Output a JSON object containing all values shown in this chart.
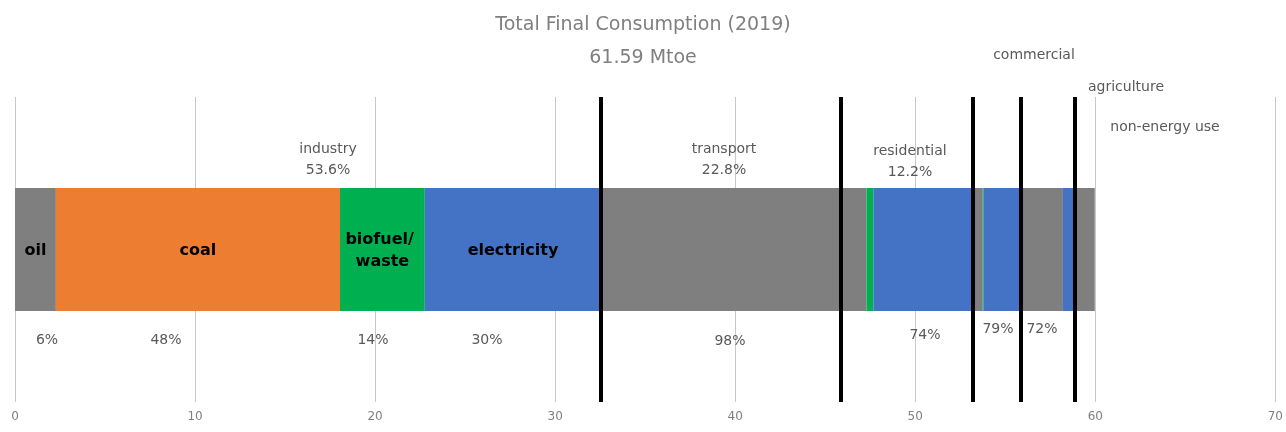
{
  "chart_data": {
    "type": "bar",
    "orientation": "horizontal",
    "stacked": true,
    "title": "Total Final Consumption (2019)",
    "subtitle": "61.59 Mtoe",
    "categories": [
      null
    ],
    "series": [
      {
        "name": "oil",
        "color": "#7f7f7f",
        "values": [
          2.27
        ]
      },
      {
        "name": "coal",
        "color": "#ed7d31",
        "values": [
          15.78
        ]
      },
      {
        "name": "biofuel/ waste",
        "color": "#00b050",
        "values": [
          4.71
        ]
      },
      {
        "name": "electricity",
        "color": "#4472c4",
        "values": [
          9.8
        ]
      },
      {
        "color": "#7f7f7f",
        "values": [
          13.29
        ]
      },
      {
        "color": "#7f7f7f",
        "values": [
          1.44
        ]
      },
      {
        "color": "#00b050",
        "values": [
          0.38
        ]
      },
      {
        "color": "#4472c4",
        "values": [
          5.52
        ]
      },
      {
        "color": "#7f7f7f",
        "values": [
          0.54
        ]
      },
      {
        "color": "#00b050",
        "values": [
          0.05
        ]
      },
      {
        "color": "#4472c4",
        "values": [
          2.09
        ]
      },
      {
        "color": "#7f7f7f",
        "values": [
          2.33
        ]
      },
      {
        "color": "#4472c4",
        "values": [
          0.66
        ]
      },
      {
        "color": "#7f7f7f",
        "values": [
          1.11
        ]
      }
    ],
    "xlim": [
      0,
      70
    ],
    "xticks": [
      0,
      10,
      20,
      30,
      40,
      50,
      60,
      70
    ],
    "grid": "x",
    "legend": false,
    "ref_lines": [
      {
        "axis": "x",
        "value": 32.56,
        "color": "#000000"
      },
      {
        "axis": "x",
        "value": 45.85,
        "color": "#000000"
      },
      {
        "axis": "x",
        "value": 53.19,
        "color": "#000000"
      },
      {
        "axis": "x",
        "value": 55.87,
        "color": "#000000"
      },
      {
        "axis": "x",
        "value": 58.86,
        "color": "#000000"
      }
    ],
    "annotations": [
      "industry\n53.6%",
      "transport\n22.8%",
      "residential\n12.2%",
      "commercial",
      "agriculture",
      "non-energy use",
      "6%",
      "48%",
      "14%",
      "30%",
      "98%",
      "74%",
      "79%",
      "72%"
    ]
  }
}
